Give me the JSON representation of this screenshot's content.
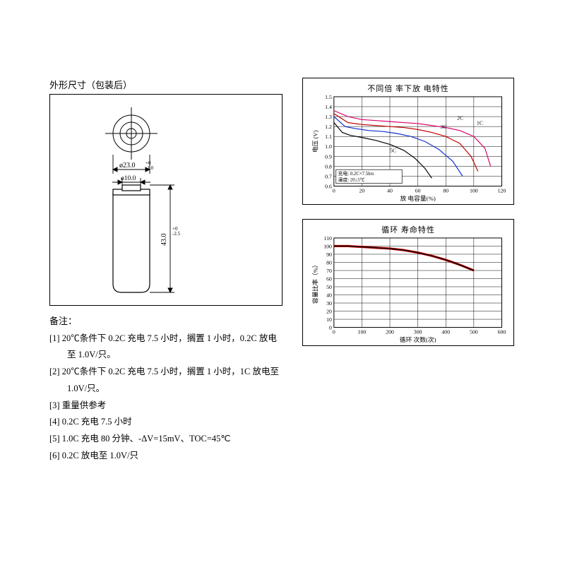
{
  "dimensions_section": {
    "title": "外形尺寸（包装后）",
    "outer_dia_label": "ø23.0",
    "outer_dia_tol": "+0\n-1.0",
    "inner_dia_label": "ø10.0",
    "height_label": "43.0",
    "height_tol": "+0\n-2.5"
  },
  "notes": {
    "title": "备注：",
    "items": [
      "[1] 20℃条件下 0.2C 充电 7.5 小时，搁置 1 小时，0.2C 放电至 1.0V/只。",
      "[2] 20℃条件下 0.2C 充电 7.5 小时，搁置 1 小时，1C 放电至 1.0V/只。",
      "[3] 重量供参考",
      "[4] 0.2C 充电 7.5 小时",
      "[5] 1.0C 充电 80 分钟、-ΔV=15mV、TOC=45℃",
      "[6] 0.2C 放电至 1.0V/只"
    ]
  },
  "chart1": {
    "type": "line",
    "title": "不同倍 率下放 电特性",
    "x_label": "放 电容量(%)",
    "y_label": "电压 (V)",
    "xlim": [
      0,
      120
    ],
    "xtick_step": 20,
    "ylim": [
      0.6,
      1.5
    ],
    "ytick_step": 0.1,
    "grid_color": "#000000",
    "background_color": "#ffffff",
    "line_width": 1.2,
    "text_fontsize": 8,
    "series": [
      {
        "name": "1C",
        "label": "1C",
        "color": "#d9006c",
        "points": [
          [
            0,
            1.36
          ],
          [
            10,
            1.3
          ],
          [
            20,
            1.27
          ],
          [
            30,
            1.26
          ],
          [
            40,
            1.25
          ],
          [
            50,
            1.24
          ],
          [
            60,
            1.23
          ],
          [
            70,
            1.21
          ],
          [
            80,
            1.19
          ],
          [
            90,
            1.16
          ],
          [
            100,
            1.1
          ],
          [
            108,
            0.98
          ],
          [
            112,
            0.8
          ]
        ]
      },
      {
        "name": "2C",
        "label": "2C",
        "color": "#c00000",
        "points": [
          [
            0,
            1.33
          ],
          [
            10,
            1.24
          ],
          [
            20,
            1.22
          ],
          [
            30,
            1.21
          ],
          [
            40,
            1.2
          ],
          [
            50,
            1.19
          ],
          [
            60,
            1.17
          ],
          [
            70,
            1.14
          ],
          [
            80,
            1.1
          ],
          [
            90,
            1.03
          ],
          [
            98,
            0.9
          ],
          [
            103,
            0.75
          ]
        ]
      },
      {
        "name": "3C",
        "label": "3C",
        "color": "#1030d0",
        "points": [
          [
            0,
            1.3
          ],
          [
            8,
            1.2
          ],
          [
            15,
            1.18
          ],
          [
            25,
            1.16
          ],
          [
            35,
            1.15
          ],
          [
            45,
            1.13
          ],
          [
            55,
            1.1
          ],
          [
            65,
            1.05
          ],
          [
            75,
            0.97
          ],
          [
            85,
            0.85
          ],
          [
            92,
            0.7
          ]
        ]
      },
      {
        "name": "5C",
        "label": "5C",
        "color": "#000000",
        "points": [
          [
            0,
            1.24
          ],
          [
            6,
            1.14
          ],
          [
            12,
            1.11
          ],
          [
            20,
            1.09
          ],
          [
            30,
            1.06
          ],
          [
            40,
            1.02
          ],
          [
            50,
            0.96
          ],
          [
            58,
            0.88
          ],
          [
            65,
            0.78
          ],
          [
            70,
            0.68
          ]
        ]
      }
    ],
    "inset_box": {
      "lines": [
        "充电: 0.2C×7.5hrs",
        "温度: 20±5℃"
      ],
      "border_color": "#000000",
      "text_fontsize": 7
    },
    "series_labels": [
      {
        "text": "1C",
        "x": 102,
        "y": 1.22
      },
      {
        "text": "2C",
        "x": 88,
        "y": 1.27
      },
      {
        "text": "3C",
        "x": 76,
        "y": 1.18
      },
      {
        "text": "5C",
        "x": 40,
        "y": 0.94
      }
    ]
  },
  "chart2": {
    "type": "line",
    "title": "循环 寿命特性",
    "x_label": "循环 次数(次)",
    "y_label": "容量比率（%）",
    "xlim": [
      0,
      600
    ],
    "xtick_step": 100,
    "ylim": [
      0,
      110
    ],
    "ytick_step": 10,
    "grid_color": "#000000",
    "background_color": "#ffffff",
    "line_width": 2,
    "text_fontsize": 8,
    "series": [
      {
        "name": "cycle",
        "color_outer": "#d00000",
        "color_inner": "#000000",
        "points": [
          [
            0,
            100
          ],
          [
            50,
            100
          ],
          [
            100,
            99
          ],
          [
            150,
            98
          ],
          [
            200,
            97
          ],
          [
            250,
            95
          ],
          [
            300,
            92
          ],
          [
            350,
            88
          ],
          [
            400,
            83
          ],
          [
            450,
            77
          ],
          [
            500,
            70
          ]
        ]
      }
    ]
  },
  "colors": {
    "line": "#000000",
    "text": "#000000",
    "battery_fill": "#ffffff"
  }
}
